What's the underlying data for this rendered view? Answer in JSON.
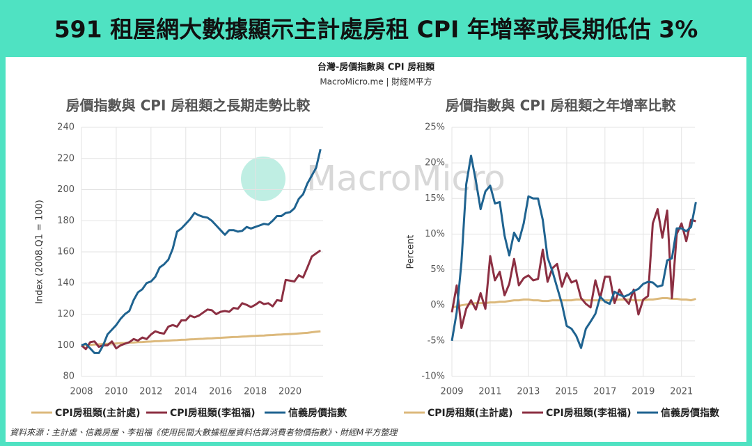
{
  "header": {
    "title": "591 租屋網大數據顯示主計處房租 CPI 年增率或長期低估 3%"
  },
  "panel_title": "台灣-房價指數與 CPI 房租類",
  "panel_source": "MacroMicro.me | 財經M平方",
  "watermark": "MacroMicro",
  "footer": "資料來源：主計處、信義房屋、李祖福《使用民間大數據租屋資料估算消費者物價指數》、財經M平方整理",
  "chart_data": [
    {
      "type": "line",
      "title": "房價指數與 CPI 房租類之長期走勢比較",
      "y_label": "Index (2008.Q1 = 100)",
      "x": [
        2008,
        2008.25,
        2008.5,
        2008.75,
        2009,
        2009.25,
        2009.5,
        2009.75,
        2010,
        2010.25,
        2010.5,
        2010.75,
        2011,
        2011.25,
        2011.5,
        2011.75,
        2012,
        2012.25,
        2012.5,
        2012.75,
        2013,
        2013.25,
        2013.5,
        2013.75,
        2014,
        2014.25,
        2014.5,
        2014.75,
        2015,
        2015.25,
        2015.5,
        2015.75,
        2016,
        2016.25,
        2016.5,
        2016.75,
        2017,
        2017.25,
        2017.5,
        2017.75,
        2018,
        2018.25,
        2018.5,
        2018.75,
        2019,
        2019.25,
        2019.5,
        2019.75,
        2020,
        2020.25,
        2020.5,
        2020.75,
        2021,
        2021.25,
        2021.5,
        2021.75
      ],
      "series": [
        {
          "name": "CPI房租類(主計處)",
          "color": "#dcb97c",
          "values": [
            100,
            100.2,
            100.3,
            100.5,
            100.6,
            100.8,
            100.9,
            101.1,
            101.2,
            101.4,
            101.5,
            101.7,
            101.8,
            102.0,
            102.1,
            102.3,
            102.4,
            102.6,
            102.7,
            102.9,
            103.0,
            103.2,
            103.3,
            103.5,
            103.6,
            103.8,
            103.9,
            104.1,
            104.2,
            104.4,
            104.5,
            104.7,
            104.8,
            105.0,
            105.1,
            105.3,
            105.4,
            105.6,
            105.7,
            105.9,
            106.0,
            106.2,
            106.3,
            106.5,
            106.6,
            106.8,
            106.9,
            107.1,
            107.2,
            107.4,
            107.6,
            107.8,
            108.0,
            108.4,
            108.7,
            109.0
          ]
        },
        {
          "name": "CPI房租類(李祖福)",
          "color": "#8c2f42",
          "values": [
            100,
            97.5,
            102,
            102.5,
            99,
            100,
            100,
            102.5,
            98,
            100,
            101,
            102,
            104,
            103,
            105,
            104,
            107,
            109,
            108,
            107.5,
            112,
            113,
            112,
            116,
            116,
            119,
            118,
            119,
            121,
            123,
            122.5,
            120,
            121.5,
            122,
            121.5,
            124,
            123.5,
            127,
            126,
            124.5,
            126,
            128,
            126.5,
            127,
            125,
            129,
            128.5,
            142,
            141.5,
            141,
            145,
            143.5,
            150,
            157,
            159,
            161
          ]
        },
        {
          "name": "信義房價指數",
          "color": "#1f6390",
          "values": [
            100,
            101,
            98,
            95,
            95,
            100,
            107,
            110,
            113,
            117,
            120,
            122,
            129,
            134,
            136,
            140,
            141,
            144,
            150,
            152,
            155,
            162,
            173,
            175,
            178,
            181,
            185,
            183.5,
            182.5,
            182,
            180,
            177,
            174,
            171,
            174,
            174,
            173,
            173.5,
            176,
            175,
            176,
            177,
            178,
            177.5,
            180,
            183,
            183,
            185,
            185.5,
            188,
            194,
            197,
            204,
            209,
            214,
            226
          ]
        }
      ],
      "xlim": [
        2008,
        2021.9
      ],
      "ylim": [
        80,
        240
      ],
      "xticks": [
        2008,
        2010,
        2012,
        2014,
        2016,
        2018,
        2020
      ],
      "yticks": [
        80,
        100,
        120,
        140,
        160,
        180,
        200,
        220,
        240
      ],
      "grid": true,
      "legend": "bottom"
    },
    {
      "type": "line",
      "title": "房價指數與 CPI 房租類之年增率比較",
      "y_label": "Percent",
      "x": [
        2009,
        2009.25,
        2009.5,
        2009.75,
        2010,
        2010.25,
        2010.5,
        2010.75,
        2011,
        2011.25,
        2011.5,
        2011.75,
        2012,
        2012.25,
        2012.5,
        2012.75,
        2013,
        2013.25,
        2013.5,
        2013.75,
        2014,
        2014.25,
        2014.5,
        2014.75,
        2015,
        2015.25,
        2015.5,
        2015.75,
        2016,
        2016.25,
        2016.5,
        2016.75,
        2017,
        2017.25,
        2017.5,
        2017.75,
        2018,
        2018.25,
        2018.5,
        2018.75,
        2019,
        2019.25,
        2019.5,
        2019.75,
        2020,
        2020.25,
        2020.5,
        2020.75,
        2021,
        2021.25,
        2021.5,
        2021.75
      ],
      "series": [
        {
          "name": "CPI房租類(主計處)",
          "color": "#dcb97c",
          "values": [
            -0.3,
            -0.2,
            0,
            0.1,
            0.2,
            0.3,
            0.3,
            0.3,
            0.4,
            0.4,
            0.5,
            0.5,
            0.6,
            0.7,
            0.7,
            0.8,
            0.8,
            0.7,
            0.7,
            0.6,
            0.6,
            0.7,
            0.7,
            0.7,
            0.7,
            0.7,
            0.8,
            0.8,
            0.7,
            0.7,
            0.7,
            0.7,
            0.7,
            0.7,
            0.7,
            0.8,
            0.8,
            0.8,
            0.7,
            0.7,
            0.7,
            0.8,
            0.8,
            0.9,
            1.0,
            1.0,
            0.9,
            0.9,
            0.8,
            0.8,
            0.7,
            0.9
          ]
        },
        {
          "name": "CPI房租類(李祖福)",
          "color": "#8c2f42",
          "values": [
            -1,
            2.8,
            -3.2,
            -0.5,
            0.7,
            -0.6,
            1.7,
            -0.5,
            6.9,
            3.5,
            4.7,
            1.4,
            3,
            6.5,
            2.8,
            3.8,
            4.2,
            3.5,
            3.7,
            7.8,
            3.3,
            5.2,
            5.8,
            2.6,
            4.5,
            3.2,
            3.5,
            1.0,
            0.2,
            -0.3,
            3.5,
            1,
            4,
            4,
            0.3,
            2.2,
            1,
            0.2,
            2.2,
            -1.3,
            0.8,
            1.3,
            11.5,
            13.5,
            9.5,
            13.3,
            1,
            10,
            11.5,
            9,
            12,
            11.8
          ]
        },
        {
          "name": "信義房價指數",
          "color": "#1f6390",
          "values": [
            -5,
            -1,
            6,
            17,
            21,
            17.5,
            13.5,
            16,
            16.8,
            14.3,
            14.5,
            9.8,
            7,
            10.2,
            9,
            11.5,
            15.3,
            15,
            15,
            12,
            6.7,
            4.8,
            2.5,
            0.2,
            -2.9,
            -3.3,
            -4.3,
            -6,
            -3.3,
            -2.3,
            -1.2,
            1.2,
            0.5,
            0.2,
            1.9,
            1.5,
            1.2,
            1.5,
            2,
            2.3,
            3,
            3.3,
            3.2,
            2.6,
            2.8,
            6.3,
            6.6,
            10.8,
            10.8,
            10.4,
            11,
            14.5
          ]
        }
      ],
      "xlim": [
        2009,
        2021.7
      ],
      "ylim": [
        -10,
        25
      ],
      "xticks": [
        2009,
        2011,
        2013,
        2015,
        2017,
        2019,
        2021
      ],
      "yticks": [
        {
          "value": -10,
          "label": "-10%"
        },
        {
          "value": -5,
          "label": "-5%"
        },
        {
          "value": 0,
          "label": "0%"
        },
        {
          "value": 5,
          "label": "5%"
        },
        {
          "value": 10,
          "label": "10%"
        },
        {
          "value": 15,
          "label": "15%"
        },
        {
          "value": 20,
          "label": "20%"
        },
        {
          "value": 25,
          "label": "25%"
        }
      ],
      "grid": true,
      "legend": "bottom"
    }
  ]
}
